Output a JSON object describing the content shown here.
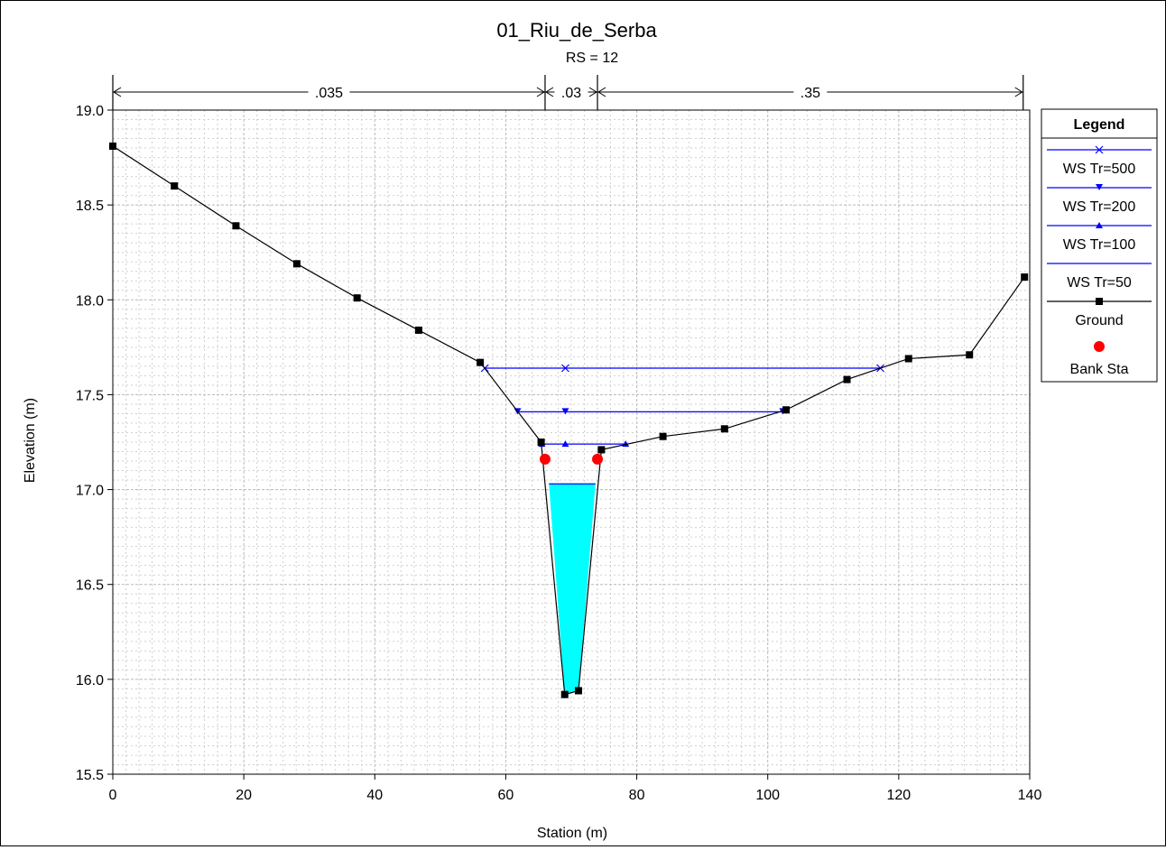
{
  "chart_data": {
    "type": "line",
    "title": "01_Riu_de_Serba",
    "subtitle": "RS = 12",
    "xlabel": "Station (m)",
    "ylabel": "Elevation (m)",
    "xlim": [
      0,
      140
    ],
    "ylim": [
      15.5,
      19.0
    ],
    "x_ticks": [
      "0",
      "20",
      "40",
      "60",
      "80",
      "100",
      "120",
      "140"
    ],
    "y_ticks": [
      "15.5",
      "16.0",
      "16.5",
      "17.0",
      "17.5",
      "18.0",
      "18.5",
      "19.0"
    ],
    "x_tick_values": [
      0,
      20,
      40,
      60,
      80,
      100,
      120,
      140
    ],
    "y_tick_values": [
      15.5,
      16.0,
      16.5,
      17.0,
      17.5,
      18.0,
      18.5,
      19.0
    ],
    "grid": true,
    "manning": [
      {
        "label": ".035",
        "from": 0,
        "to": 66
      },
      {
        "label": ".03",
        "from": 66,
        "to": 74
      },
      {
        "label": ".35",
        "from": 74,
        "to": 139
      }
    ],
    "ground": {
      "name": "Ground",
      "color": "#000000",
      "x": [
        0,
        9.4,
        18.8,
        28.1,
        37.3,
        46.7,
        56.1,
        65.4,
        69.0,
        71.1,
        74.6,
        84.0,
        93.4,
        102.8,
        112.1,
        121.5,
        130.8,
        139.2
      ],
      "y": [
        18.81,
        18.6,
        18.39,
        18.19,
        18.01,
        17.84,
        17.67,
        17.25,
        15.92,
        15.94,
        17.21,
        17.28,
        17.32,
        17.42,
        17.58,
        17.69,
        17.71,
        18.12
      ]
    },
    "bank_sta": {
      "name": "Bank Sta",
      "color": "#ff0000",
      "points": [
        {
          "x": 66.0,
          "y": 17.16
        },
        {
          "x": 74.0,
          "y": 17.16
        }
      ]
    },
    "water_surfaces": [
      {
        "name": "WS Tr=500",
        "marker": "x",
        "color": "#0000ff",
        "elevation": 17.64,
        "x_from": 56.8,
        "x_to": 117.2,
        "marker_x": [
          56.8,
          69.1,
          117.2
        ]
      },
      {
        "name": "WS Tr=200",
        "marker": "triangle-down",
        "color": "#0000ff",
        "elevation": 17.41,
        "x_from": 61.8,
        "x_to": 102.3,
        "marker_x": [
          61.8,
          69.1,
          102.3
        ]
      },
      {
        "name": "WS Tr=100",
        "marker": "triangle-up",
        "color": "#0000ff",
        "elevation": 17.24,
        "x_from": 65.5,
        "x_to": 78.3,
        "marker_x": [
          65.5,
          69.1,
          78.3
        ]
      },
      {
        "name": "WS Tr=50",
        "marker": "none",
        "color": "#0000ff",
        "elevation": 17.03,
        "x_from": 66.6,
        "x_to": 73.7,
        "marker_x": []
      }
    ],
    "water_fill_color": "#00ffff",
    "legend": {
      "title": "Legend",
      "placement": "right",
      "entries": [
        {
          "name": "WS Tr=500",
          "marker": "x",
          "color": "#0000ff"
        },
        {
          "name": "WS Tr=200",
          "marker": "triangle-down",
          "color": "#0000ff"
        },
        {
          "name": "WS Tr=100",
          "marker": "triangle-up",
          "color": "#0000ff"
        },
        {
          "name": "WS Tr=50",
          "marker": "none",
          "color": "#0000ff"
        },
        {
          "name": "Ground",
          "marker": "square",
          "color": "#000000"
        },
        {
          "name": "Bank Sta",
          "marker": "circle",
          "color": "#ff0000"
        }
      ]
    }
  }
}
